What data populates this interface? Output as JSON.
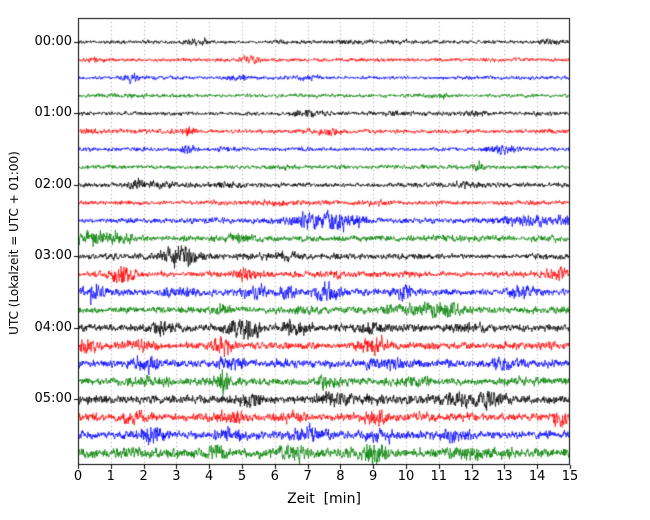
{
  "chart_data": {
    "type": "line",
    "subtype": "helicorder-drum-seismogram",
    "title": "",
    "xlabel": "Zeit  [min]",
    "ylabel": "UTC (Lokalzeit = UTC + 01:00)",
    "xlim": [
      0,
      15
    ],
    "x_tick_labels": [
      "0",
      "1",
      "2",
      "3",
      "4",
      "5",
      "6",
      "7",
      "8",
      "9",
      "10",
      "11",
      "12",
      "13",
      "14",
      "15"
    ],
    "y_tick_labels": [
      "00:00",
      "01:00",
      "02:00",
      "03:00",
      "04:00",
      "05:00"
    ],
    "grid": "vertical-dotted-per-minute",
    "minutes_per_row": 15,
    "rows_per_hour": 4,
    "n_rows": 24,
    "trace_colors_cycle": [
      "#000000",
      "#ff0000",
      "#0000ff",
      "#008000"
    ],
    "rows": [
      {
        "start": "00:00",
        "color": "#000000",
        "base_amplitude": 1.8,
        "events": [
          {
            "t_min": 3.6,
            "amplitude": 2.5,
            "width_min": 0.25
          },
          {
            "t_min": 8.3,
            "amplitude": 1.2,
            "width_min": 0.3
          },
          {
            "t_min": 14.3,
            "amplitude": 1.5,
            "width_min": 0.25
          }
        ]
      },
      {
        "start": "00:15",
        "color": "#ff0000",
        "base_amplitude": 1.8,
        "events": [
          {
            "t_min": 5.2,
            "amplitude": 2.5,
            "width_min": 0.2
          },
          {
            "t_min": 0.5,
            "amplitude": 1.5,
            "width_min": 0.2
          }
        ]
      },
      {
        "start": "00:30",
        "color": "#0000ff",
        "base_amplitude": 1.8,
        "events": [
          {
            "t_min": 1.6,
            "amplitude": 2.5,
            "width_min": 0.2
          },
          {
            "t_min": 4.9,
            "amplitude": 2.0,
            "width_min": 0.25
          },
          {
            "t_min": 7.0,
            "amplitude": 1.2,
            "width_min": 0.3
          }
        ]
      },
      {
        "start": "00:45",
        "color": "#008000",
        "base_amplitude": 1.8,
        "events": [
          {
            "t_min": 2.0,
            "amplitude": 1.0,
            "width_min": 0.3
          },
          {
            "t_min": 11.0,
            "amplitude": 1.0,
            "width_min": 0.3
          }
        ]
      },
      {
        "start": "01:00",
        "color": "#000000",
        "base_amplitude": 2.0,
        "events": [
          {
            "t_min": 7.0,
            "amplitude": 2.0,
            "width_min": 0.3
          },
          {
            "t_min": 9.6,
            "amplitude": 1.5,
            "width_min": 0.3
          },
          {
            "t_min": 12.1,
            "amplitude": 2.0,
            "width_min": 0.3
          }
        ]
      },
      {
        "start": "01:15",
        "color": "#ff0000",
        "base_amplitude": 2.0,
        "events": [
          {
            "t_min": 3.4,
            "amplitude": 3.0,
            "width_min": 0.2
          },
          {
            "t_min": 7.6,
            "amplitude": 2.5,
            "width_min": 0.3
          },
          {
            "t_min": 0.3,
            "amplitude": 2.0,
            "width_min": 0.2
          }
        ]
      },
      {
        "start": "01:30",
        "color": "#0000ff",
        "base_amplitude": 2.0,
        "events": [
          {
            "t_min": 3.4,
            "amplitude": 3.5,
            "width_min": 0.2
          },
          {
            "t_min": 4.6,
            "amplitude": 2.0,
            "width_min": 0.25
          },
          {
            "t_min": 12.9,
            "amplitude": 4.0,
            "width_min": 0.35
          }
        ]
      },
      {
        "start": "01:45",
        "color": "#008000",
        "base_amplitude": 2.0,
        "events": [
          {
            "t_min": 12.2,
            "amplitude": 4.0,
            "width_min": 0.12
          },
          {
            "t_min": 6.5,
            "amplitude": 1.0,
            "width_min": 0.3
          }
        ]
      },
      {
        "start": "02:00",
        "color": "#000000",
        "base_amplitude": 2.3,
        "events": [
          {
            "t_min": 1.8,
            "amplitude": 3.0,
            "width_min": 0.3
          },
          {
            "t_min": 2.6,
            "amplitude": 2.0,
            "width_min": 0.25
          },
          {
            "t_min": 11.9,
            "amplitude": 2.5,
            "width_min": 0.3
          },
          {
            "t_min": 4.5,
            "amplitude": 1.5,
            "width_min": 0.3
          }
        ]
      },
      {
        "start": "02:15",
        "color": "#ff0000",
        "base_amplitude": 2.2,
        "events": [
          {
            "t_min": 6.0,
            "amplitude": 1.2,
            "width_min": 0.4
          },
          {
            "t_min": 9.0,
            "amplitude": 1.0,
            "width_min": 0.3
          }
        ]
      },
      {
        "start": "02:30",
        "color": "#0000ff",
        "base_amplitude": 2.5,
        "events": [
          {
            "t_min": 7.3,
            "amplitude": 5.5,
            "width_min": 0.6
          },
          {
            "t_min": 8.2,
            "amplitude": 3.5,
            "width_min": 0.4
          },
          {
            "t_min": 13.8,
            "amplitude": 3.0,
            "width_min": 0.6
          },
          {
            "t_min": 14.8,
            "amplitude": 3.0,
            "width_min": 0.3
          }
        ]
      },
      {
        "start": "02:45",
        "color": "#008000",
        "base_amplitude": 3.0,
        "events": [
          {
            "t_min": 0.4,
            "amplitude": 6.0,
            "width_min": 0.35
          },
          {
            "t_min": 1.2,
            "amplitude": 3.0,
            "width_min": 0.3
          },
          {
            "t_min": 5.0,
            "amplitude": 1.5,
            "width_min": 0.5
          }
        ]
      },
      {
        "start": "03:00",
        "color": "#000000",
        "base_amplitude": 3.0,
        "events": [
          {
            "t_min": 3.2,
            "amplitude": 8.0,
            "width_min": 0.3
          },
          {
            "t_min": 2.7,
            "amplitude": 3.0,
            "width_min": 0.2
          },
          {
            "t_min": 6.5,
            "amplitude": 1.5,
            "width_min": 0.4
          }
        ]
      },
      {
        "start": "03:15",
        "color": "#ff0000",
        "base_amplitude": 2.8,
        "events": [
          {
            "t_min": 1.4,
            "amplitude": 6.5,
            "width_min": 0.25
          },
          {
            "t_min": 5.1,
            "amplitude": 5.0,
            "width_min": 0.2
          },
          {
            "t_min": 14.6,
            "amplitude": 6.0,
            "width_min": 0.25
          },
          {
            "t_min": 8.0,
            "amplitude": 1.5,
            "width_min": 0.4
          }
        ]
      },
      {
        "start": "03:30",
        "color": "#0000ff",
        "base_amplitude": 3.2,
        "events": [
          {
            "t_min": 0.5,
            "amplitude": 7.0,
            "width_min": 0.2
          },
          {
            "t_min": 5.4,
            "amplitude": 6.0,
            "width_min": 0.25
          },
          {
            "t_min": 6.4,
            "amplitude": 7.0,
            "width_min": 0.2
          },
          {
            "t_min": 7.6,
            "amplitude": 7.0,
            "width_min": 0.25
          },
          {
            "t_min": 9.9,
            "amplitude": 5.0,
            "width_min": 0.3
          },
          {
            "t_min": 13.6,
            "amplitude": 6.0,
            "width_min": 0.3
          },
          {
            "t_min": 3.0,
            "amplitude": 3.0,
            "width_min": 0.3
          }
        ]
      },
      {
        "start": "03:45",
        "color": "#008000",
        "base_amplitude": 3.2,
        "events": [
          {
            "t_min": 10.8,
            "amplitude": 4.5,
            "width_min": 0.7
          },
          {
            "t_min": 4.4,
            "amplitude": 3.0,
            "width_min": 0.2
          },
          {
            "t_min": 6.8,
            "amplitude": 2.0,
            "width_min": 0.3
          }
        ]
      },
      {
        "start": "04:00",
        "color": "#000000",
        "base_amplitude": 3.5,
        "events": [
          {
            "t_min": 2.6,
            "amplitude": 5.0,
            "width_min": 0.3
          },
          {
            "t_min": 5.0,
            "amplitude": 6.0,
            "width_min": 0.35
          },
          {
            "t_min": 6.6,
            "amplitude": 5.0,
            "width_min": 0.3
          },
          {
            "t_min": 9.0,
            "amplitude": 5.0,
            "width_min": 0.25
          },
          {
            "t_min": 12.0,
            "amplitude": 2.0,
            "width_min": 0.4
          }
        ]
      },
      {
        "start": "04:15",
        "color": "#ff0000",
        "base_amplitude": 3.5,
        "events": [
          {
            "t_min": 0.3,
            "amplitude": 6.0,
            "width_min": 0.2
          },
          {
            "t_min": 4.4,
            "amplitude": 7.0,
            "width_min": 0.25
          },
          {
            "t_min": 9.0,
            "amplitude": 5.0,
            "width_min": 0.3
          },
          {
            "t_min": 2.0,
            "amplitude": 3.0,
            "width_min": 0.3
          }
        ]
      },
      {
        "start": "04:30",
        "color": "#0000ff",
        "base_amplitude": 3.8,
        "events": [
          {
            "t_min": 2.1,
            "amplitude": 5.0,
            "width_min": 0.3
          },
          {
            "t_min": 4.6,
            "amplitude": 5.0,
            "width_min": 0.3
          },
          {
            "t_min": 9.5,
            "amplitude": 4.0,
            "width_min": 0.4
          },
          {
            "t_min": 13.0,
            "amplitude": 3.0,
            "width_min": 0.4
          }
        ]
      },
      {
        "start": "04:45",
        "color": "#008000",
        "base_amplitude": 3.8,
        "events": [
          {
            "t_min": 4.4,
            "amplitude": 9.0,
            "width_min": 0.15
          },
          {
            "t_min": 7.6,
            "amplitude": 4.0,
            "width_min": 0.3
          },
          {
            "t_min": 2.2,
            "amplitude": 3.0,
            "width_min": 0.3
          },
          {
            "t_min": 10.5,
            "amplitude": 3.0,
            "width_min": 0.4
          }
        ]
      },
      {
        "start": "05:00",
        "color": "#000000",
        "base_amplitude": 4.0,
        "events": [
          {
            "t_min": 8.0,
            "amplitude": 4.0,
            "width_min": 0.5
          },
          {
            "t_min": 11.6,
            "amplitude": 4.0,
            "width_min": 0.4
          },
          {
            "t_min": 12.6,
            "amplitude": 4.0,
            "width_min": 0.3
          },
          {
            "t_min": 5.2,
            "amplitude": 3.0,
            "width_min": 0.3
          }
        ]
      },
      {
        "start": "05:15",
        "color": "#ff0000",
        "base_amplitude": 4.0,
        "events": [
          {
            "t_min": 1.8,
            "amplitude": 5.0,
            "width_min": 0.3
          },
          {
            "t_min": 4.6,
            "amplitude": 5.0,
            "width_min": 0.25
          },
          {
            "t_min": 9.0,
            "amplitude": 5.0,
            "width_min": 0.3
          },
          {
            "t_min": 14.7,
            "amplitude": 9.0,
            "width_min": 0.15
          },
          {
            "t_min": 6.5,
            "amplitude": 3.0,
            "width_min": 0.3
          }
        ]
      },
      {
        "start": "05:30",
        "color": "#0000ff",
        "base_amplitude": 4.2,
        "events": [
          {
            "t_min": 2.3,
            "amplitude": 6.0,
            "width_min": 0.25
          },
          {
            "t_min": 4.6,
            "amplitude": 5.0,
            "width_min": 0.3
          },
          {
            "t_min": 7.0,
            "amplitude": 5.0,
            "width_min": 0.3
          },
          {
            "t_min": 9.3,
            "amplitude": 6.0,
            "width_min": 0.25
          },
          {
            "t_min": 11.5,
            "amplitude": 4.0,
            "width_min": 0.35
          }
        ]
      },
      {
        "start": "05:45",
        "color": "#008000",
        "base_amplitude": 5.0,
        "events": [
          {
            "t_min": 4.3,
            "amplitude": 7.0,
            "width_min": 0.2
          },
          {
            "t_min": 6.5,
            "amplitude": 5.0,
            "width_min": 0.3
          },
          {
            "t_min": 9.0,
            "amplitude": 5.0,
            "width_min": 0.3
          },
          {
            "t_min": 12.0,
            "amplitude": 3.0,
            "width_min": 0.4
          }
        ]
      }
    ]
  }
}
